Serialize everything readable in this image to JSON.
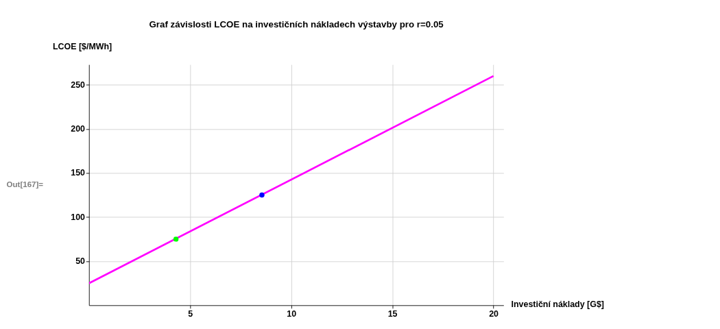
{
  "chart_data": {
    "type": "line",
    "title": "Graf závislosti LCOE na investičních nákladech výstavby pro r=0.05",
    "xlabel": "Investiční náklady [G$]",
    "ylabel": "LCOE [$/MWh]",
    "annotations": [
      "Out[167]="
    ],
    "xlim": [
      0,
      20.5
    ],
    "ylim": [
      0,
      273
    ],
    "xticks": [
      5,
      10,
      15,
      20
    ],
    "yticks": [
      50,
      100,
      150,
      200,
      250
    ],
    "grid": true,
    "series": [
      {
        "color": "#ff00ff",
        "x": [
          0,
          20
        ],
        "values": [
          25,
          260
        ]
      },
      {
        "type": "scatter",
        "color": "#00ff00",
        "x": [
          4.3
        ],
        "values": [
          75
        ]
      },
      {
        "type": "scatter",
        "color": "#0000ff",
        "x": [
          8.55
        ],
        "values": [
          125
        ]
      }
    ]
  }
}
